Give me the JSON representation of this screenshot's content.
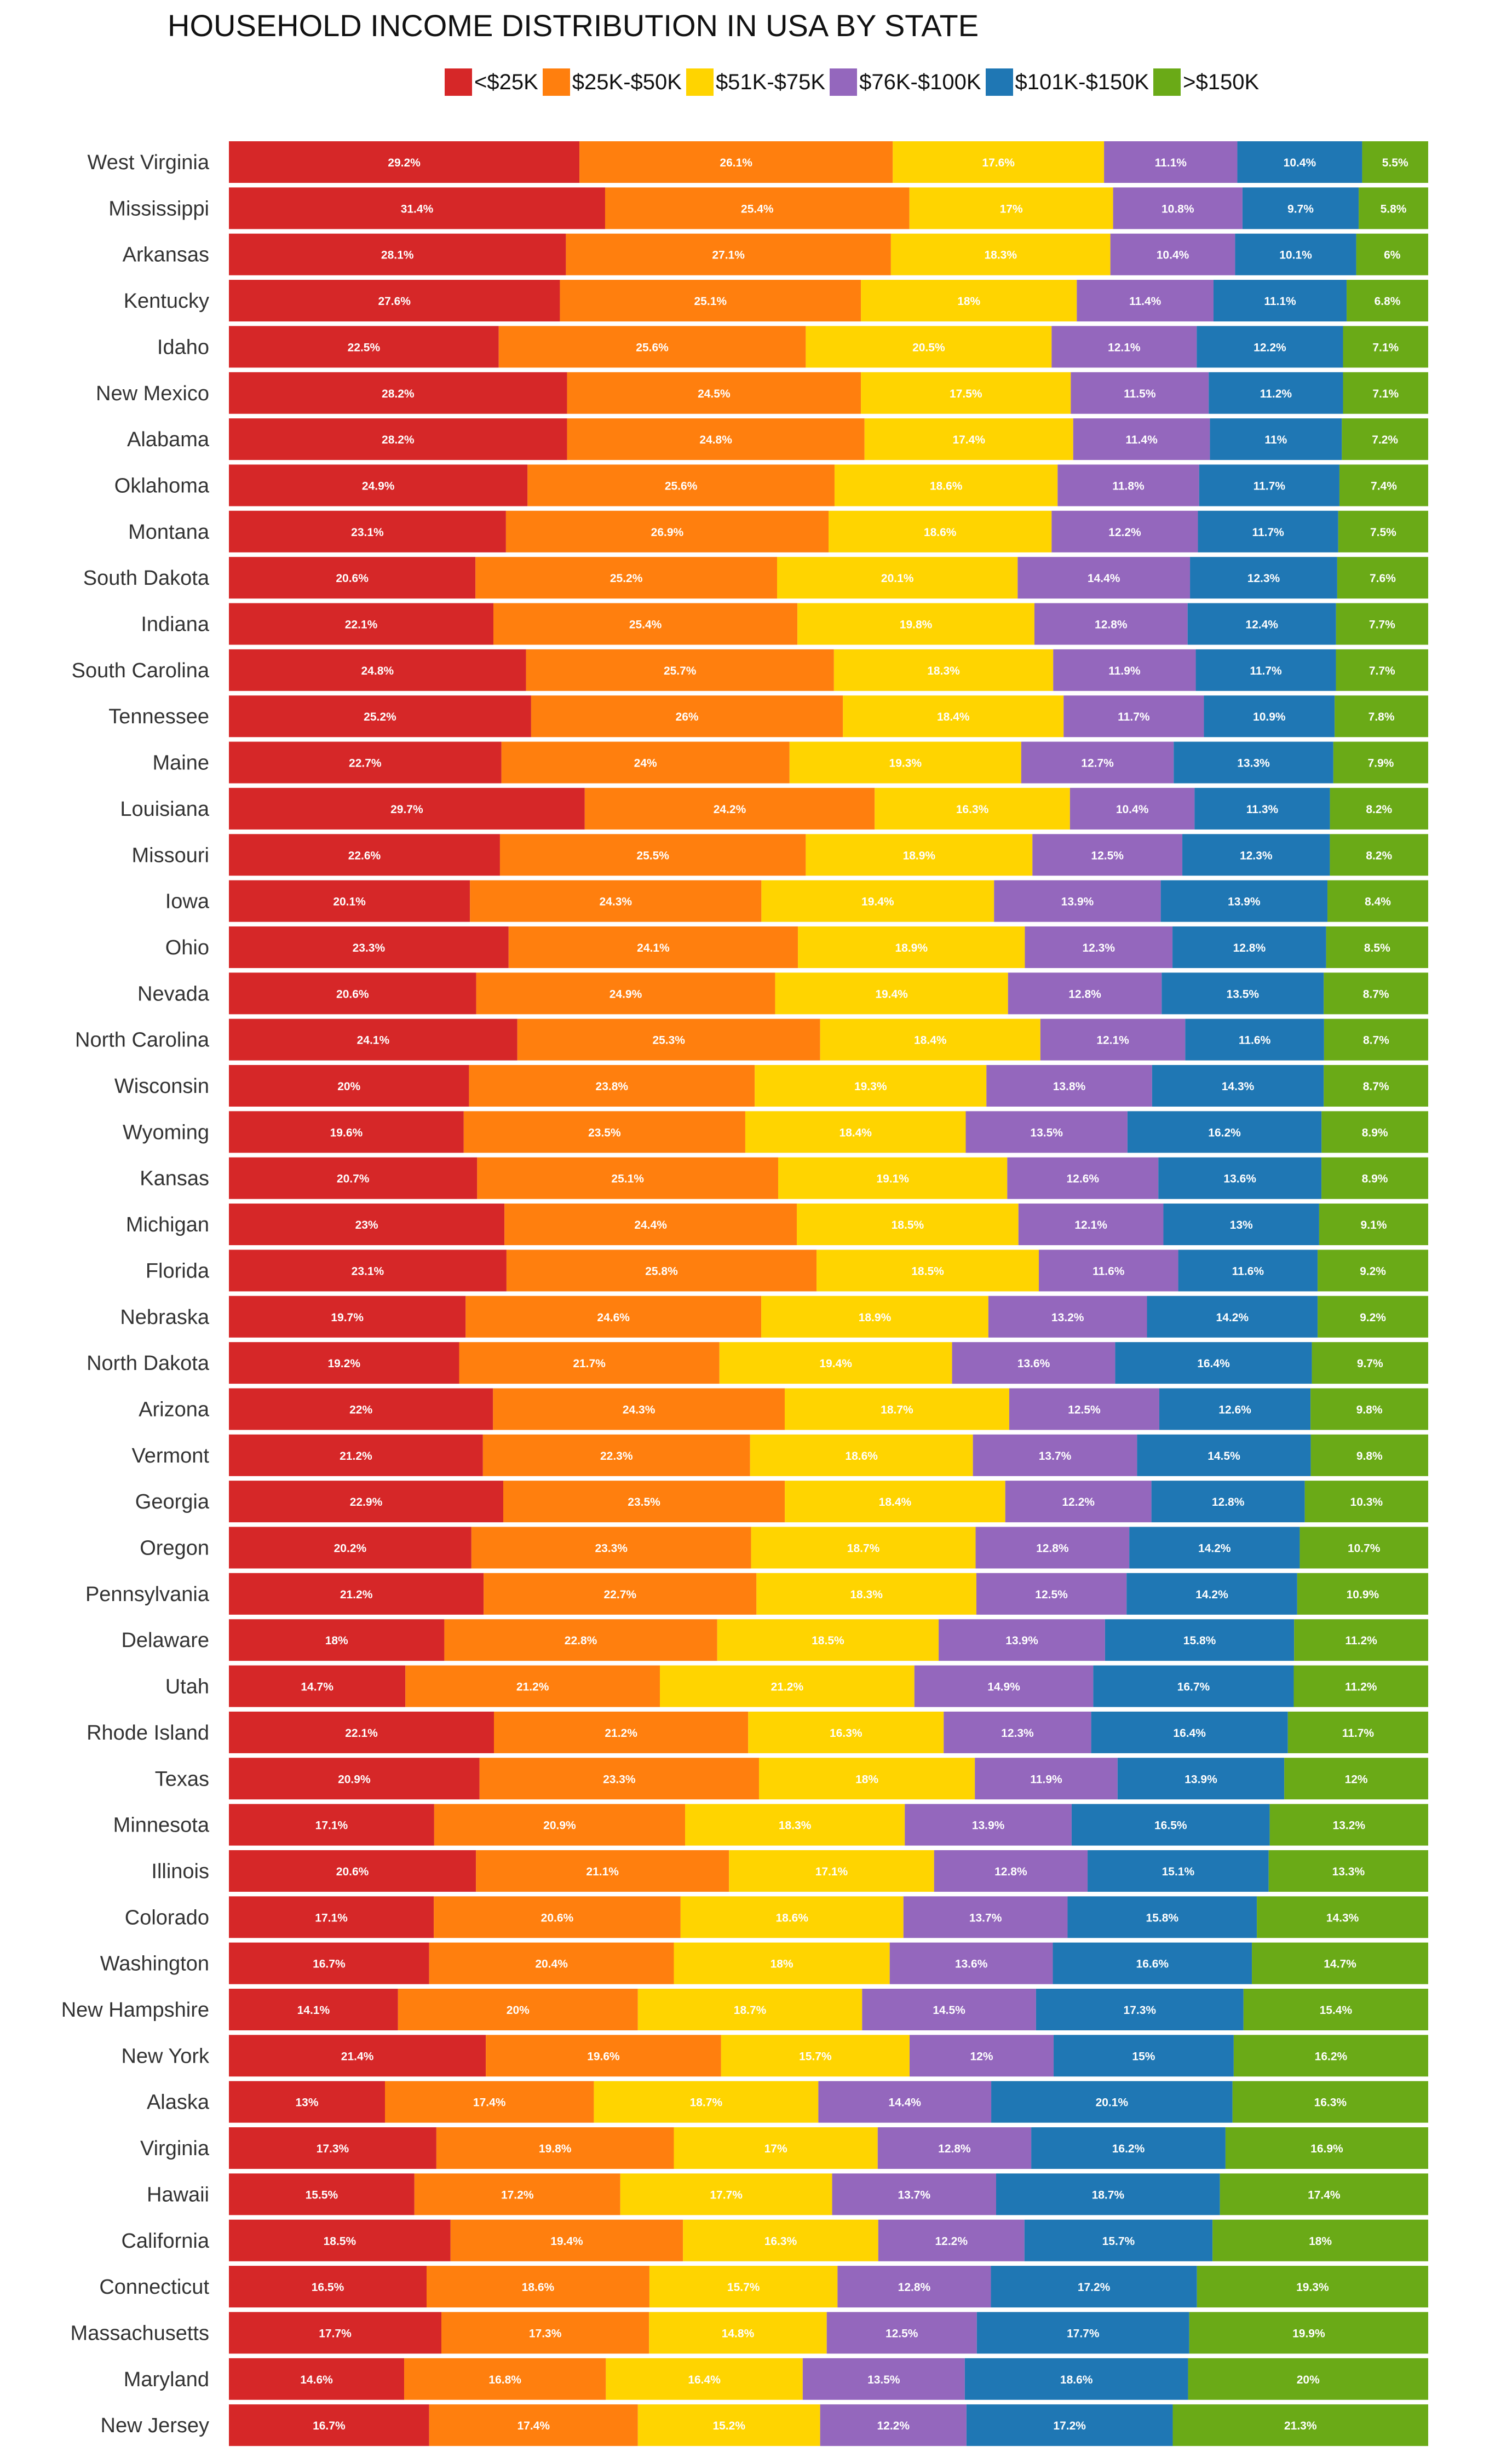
{
  "colors": [
    "#d62728",
    "#ff7f0e",
    "#ffd400",
    "#9467bd",
    "#1f77b4",
    "#6aaa17"
  ],
  "chart_data": {
    "type": "bar",
    "orientation": "horizontal",
    "stacked": true,
    "title": "HOUSEHOLD INCOME DISTRIBUTION IN USA BY STATE",
    "xlabel": "",
    "ylabel": "",
    "legend_position": "top",
    "grid": false,
    "categories": [
      "West Virginia",
      "Mississippi",
      "Arkansas",
      "Kentucky",
      "Idaho",
      "New Mexico",
      "Alabama",
      "Oklahoma",
      "Montana",
      "South Dakota",
      "Indiana",
      "South Carolina",
      "Tennessee",
      "Maine",
      "Louisiana",
      "Missouri",
      "Iowa",
      "Ohio",
      "Nevada",
      "North Carolina",
      "Wisconsin",
      "Wyoming",
      "Kansas",
      "Michigan",
      "Florida",
      "Nebraska",
      "North Dakota",
      "Arizona",
      "Vermont",
      "Georgia",
      "Oregon",
      "Pennsylvania",
      "Delaware",
      "Utah",
      "Rhode Island",
      "Texas",
      "Minnesota",
      "Illinois",
      "Colorado",
      "Washington",
      "New Hampshire",
      "New York",
      "Alaska",
      "Virginia",
      "Hawaii",
      "California",
      "Connecticut",
      "Massachusetts",
      "Maryland",
      "New Jersey"
    ],
    "series": [
      {
        "name": "<$25K",
        "values": [
          29.2,
          31.4,
          28.1,
          27.6,
          22.5,
          28.2,
          28.2,
          24.9,
          23.1,
          20.6,
          22.1,
          24.8,
          25.2,
          22.7,
          29.7,
          22.6,
          20.1,
          23.3,
          20.6,
          24.1,
          20,
          19.6,
          20.7,
          23,
          23.1,
          19.7,
          19.2,
          22,
          21.2,
          22.9,
          20.2,
          21.2,
          18,
          14.7,
          22.1,
          20.9,
          17.1,
          20.6,
          17.1,
          16.7,
          14.1,
          21.4,
          13,
          17.3,
          15.5,
          18.5,
          16.5,
          17.7,
          14.6,
          16.7
        ]
      },
      {
        "name": "$25K-$50K",
        "values": [
          26.1,
          25.4,
          27.1,
          25.1,
          25.6,
          24.5,
          24.8,
          25.6,
          26.9,
          25.2,
          25.4,
          25.7,
          26,
          24,
          24.2,
          25.5,
          24.3,
          24.1,
          24.9,
          25.3,
          23.8,
          23.5,
          25.1,
          24.4,
          25.8,
          24.6,
          21.7,
          24.3,
          22.3,
          23.5,
          23.3,
          22.7,
          22.8,
          21.2,
          21.2,
          23.3,
          20.9,
          21.1,
          20.6,
          20.4,
          20,
          19.6,
          17.4,
          19.8,
          17.2,
          19.4,
          18.6,
          17.3,
          16.8,
          17.4
        ]
      },
      {
        "name": "$51K-$75K",
        "values": [
          17.6,
          17,
          18.3,
          18,
          20.5,
          17.5,
          17.4,
          18.6,
          18.6,
          20.1,
          19.8,
          18.3,
          18.4,
          19.3,
          16.3,
          18.9,
          19.4,
          18.9,
          19.4,
          18.4,
          19.3,
          18.4,
          19.1,
          18.5,
          18.5,
          18.9,
          19.4,
          18.7,
          18.6,
          18.4,
          18.7,
          18.3,
          18.5,
          21.2,
          16.3,
          18,
          18.3,
          17.1,
          18.6,
          18,
          18.7,
          15.7,
          18.7,
          17,
          17.7,
          16.3,
          15.7,
          14.8,
          16.4,
          15.2
        ]
      },
      {
        "name": "$76K-$100K",
        "values": [
          11.1,
          10.8,
          10.4,
          11.4,
          12.1,
          11.5,
          11.4,
          11.8,
          12.2,
          14.4,
          12.8,
          11.9,
          11.7,
          12.7,
          10.4,
          12.5,
          13.9,
          12.3,
          12.8,
          12.1,
          13.8,
          13.5,
          12.6,
          12.1,
          11.6,
          13.2,
          13.6,
          12.5,
          13.7,
          12.2,
          12.8,
          12.5,
          13.9,
          14.9,
          12.3,
          11.9,
          13.9,
          12.8,
          13.7,
          13.6,
          14.5,
          12,
          14.4,
          12.8,
          13.7,
          12.2,
          12.8,
          12.5,
          13.5,
          12.2
        ]
      },
      {
        "name": "$101K-$150K",
        "values": [
          10.4,
          9.7,
          10.1,
          11.1,
          12.2,
          11.2,
          11,
          11.7,
          11.7,
          12.3,
          12.4,
          11.7,
          10.9,
          13.3,
          11.3,
          12.3,
          13.9,
          12.8,
          13.5,
          11.6,
          14.3,
          16.2,
          13.6,
          13,
          11.6,
          14.2,
          16.4,
          12.6,
          14.5,
          12.8,
          14.2,
          14.2,
          15.8,
          16.7,
          16.4,
          13.9,
          16.5,
          15.1,
          15.8,
          16.6,
          17.3,
          15,
          20.1,
          16.2,
          18.7,
          15.7,
          17.2,
          17.7,
          18.6,
          17.2
        ]
      },
      {
        "name": ">$150K",
        "values": [
          5.5,
          5.8,
          6,
          6.8,
          7.1,
          7.1,
          7.2,
          7.4,
          7.5,
          7.6,
          7.7,
          7.7,
          7.8,
          7.9,
          8.2,
          8.2,
          8.4,
          8.5,
          8.7,
          8.7,
          8.7,
          8.9,
          8.9,
          9.1,
          9.2,
          9.2,
          9.7,
          9.8,
          9.8,
          10.3,
          10.7,
          10.9,
          11.2,
          11.2,
          11.7,
          12,
          13.2,
          13.3,
          14.3,
          14.7,
          15.4,
          16.2,
          16.3,
          16.9,
          17.4,
          18,
          19.3,
          19.9,
          20,
          21.3
        ]
      }
    ]
  }
}
